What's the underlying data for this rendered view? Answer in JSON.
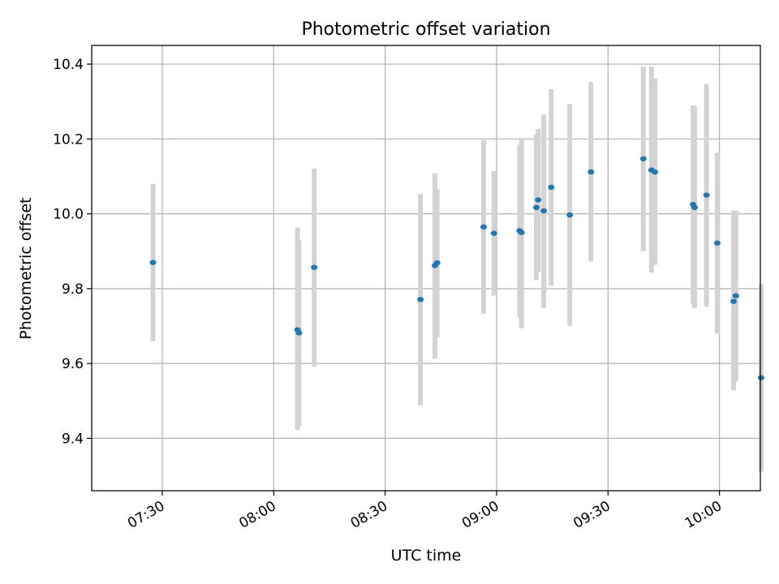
{
  "chart_data": {
    "type": "scatter",
    "title": "Photometric offset variation",
    "xlabel": "UTC time",
    "ylabel": "Photometric offset",
    "xlim_minutes": [
      1271,
      1451
    ],
    "ylim": [
      9.26,
      10.45
    ],
    "x_ticks": [
      {
        "minute": 1290,
        "label": "07:30"
      },
      {
        "minute": 1320,
        "label": "08:00"
      },
      {
        "minute": 1350,
        "label": "08:30"
      },
      {
        "minute": 1380,
        "label": "09:00"
      },
      {
        "minute": 1410,
        "label": "09:30"
      },
      {
        "minute": 1440,
        "label": "10:00"
      }
    ],
    "y_ticks": [
      9.4,
      9.6,
      9.8,
      10.0,
      10.2,
      10.4
    ],
    "y_tick_labels": [
      "9.4",
      "9.6",
      "9.8",
      "10.0",
      "10.2",
      "10.4"
    ],
    "grid": true,
    "point_color": "#1f77b4",
    "errorbar_color": "#d3d3d3",
    "points": [
      {
        "t": "07:27:30",
        "minute": 1287.5,
        "y": 9.87,
        "err_low": 9.66,
        "err_high": 10.08
      },
      {
        "t": "08:06:24",
        "minute": 1326.4,
        "y": 9.69,
        "err_low": 9.422,
        "err_high": 9.963
      },
      {
        "t": "08:06:48",
        "minute": 1326.8,
        "y": 9.682,
        "err_low": 9.432,
        "err_high": 9.93
      },
      {
        "t": "08:10:54",
        "minute": 1330.9,
        "y": 9.857,
        "err_low": 9.592,
        "err_high": 10.121
      },
      {
        "t": "08:39:30",
        "minute": 1359.5,
        "y": 9.771,
        "err_low": 9.488,
        "err_high": 10.053
      },
      {
        "t": "08:43:24",
        "minute": 1363.4,
        "y": 9.862,
        "err_low": 9.613,
        "err_high": 10.108
      },
      {
        "t": "08:44:00",
        "minute": 1364.0,
        "y": 9.869,
        "err_low": 9.67,
        "err_high": 10.066
      },
      {
        "t": "08:56:30",
        "minute": 1376.5,
        "y": 9.965,
        "err_low": 9.733,
        "err_high": 10.197
      },
      {
        "t": "08:59:18",
        "minute": 1379.3,
        "y": 9.948,
        "err_low": 9.781,
        "err_high": 10.114
      },
      {
        "t": "09:06:12",
        "minute": 1386.2,
        "y": 9.955,
        "err_low": 9.724,
        "err_high": 10.184
      },
      {
        "t": "09:06:42",
        "minute": 1386.7,
        "y": 9.95,
        "err_low": 9.694,
        "err_high": 10.203
      },
      {
        "t": "09:10:42",
        "minute": 1390.7,
        "y": 10.017,
        "err_low": 9.823,
        "err_high": 10.212
      },
      {
        "t": "09:11:12",
        "minute": 1391.2,
        "y": 10.037,
        "err_low": 9.845,
        "err_high": 10.227
      },
      {
        "t": "09:12:42",
        "minute": 1392.7,
        "y": 10.008,
        "err_low": 9.749,
        "err_high": 10.265
      },
      {
        "t": "09:14:42",
        "minute": 1394.7,
        "y": 10.071,
        "err_low": 9.808,
        "err_high": 10.333
      },
      {
        "t": "09:19:42",
        "minute": 1399.7,
        "y": 9.997,
        "err_low": 9.7,
        "err_high": 10.293
      },
      {
        "t": "09:25:24",
        "minute": 1405.4,
        "y": 10.112,
        "err_low": 9.873,
        "err_high": 10.352
      },
      {
        "t": "09:39:30",
        "minute": 1419.5,
        "y": 10.147,
        "err_low": 9.9,
        "err_high": 10.393
      },
      {
        "t": "09:41:42",
        "minute": 1421.7,
        "y": 10.117,
        "err_low": 9.843,
        "err_high": 10.393
      },
      {
        "t": "09:42:36",
        "minute": 1422.6,
        "y": 10.112,
        "err_low": 9.864,
        "err_high": 10.361
      },
      {
        "t": "09:52:54",
        "minute": 1432.9,
        "y": 10.025,
        "err_low": 9.76,
        "err_high": 10.29
      },
      {
        "t": "09:53:18",
        "minute": 1433.3,
        "y": 10.017,
        "err_low": 9.748,
        "err_high": 10.286
      },
      {
        "t": "09:56:30",
        "minute": 1436.5,
        "y": 10.05,
        "err_low": 9.752,
        "err_high": 10.347
      },
      {
        "t": "09:59:24",
        "minute": 1439.4,
        "y": 9.922,
        "err_low": 9.68,
        "err_high": 10.163
      },
      {
        "t": "10:03:48",
        "minute": 1443.8,
        "y": 9.766,
        "err_low": 9.528,
        "err_high": 10.009
      },
      {
        "t": "10:04:24",
        "minute": 1444.4,
        "y": 9.781,
        "err_low": 9.553,
        "err_high": 10.008
      },
      {
        "t": "10:11:12",
        "minute": 1451.2,
        "y": 9.562,
        "err_low": 9.311,
        "err_high": 9.813
      }
    ]
  }
}
